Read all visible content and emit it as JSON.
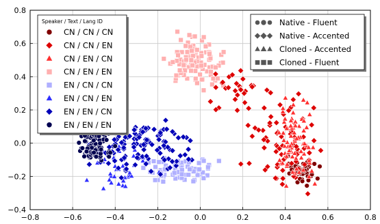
{
  "chart_data": {
    "type": "scatter",
    "xlim": [
      -0.8,
      0.8
    ],
    "ylim": [
      -0.4,
      0.8
    ],
    "x_ticks": [
      "−0.8",
      "−0.6",
      "−0.4",
      "−0.2",
      "0.0",
      "0.2",
      "0.4",
      "0.6",
      "0.8"
    ],
    "y_ticks": [
      "−0.4",
      "−0.2",
      "0.0",
      "0.2",
      "0.4",
      "0.6",
      "0.8"
    ],
    "grid": true,
    "legend_color": {
      "placement": "top-left",
      "title": "Speaker / Text / Lang ID",
      "entries": [
        {
          "label": "CN / CN / CN",
          "color": "#800000",
          "marker": "circle"
        },
        {
          "label": "CN / CN / EN",
          "color": "#dd0000",
          "marker": "diamond"
        },
        {
          "label": "CN / EN / CN",
          "color": "#ff3030",
          "marker": "triangle"
        },
        {
          "label": "CN / EN / EN",
          "color": "#ffb0b0",
          "marker": "square"
        },
        {
          "label": "EN / CN / CN",
          "color": "#b0b0ff",
          "marker": "square"
        },
        {
          "label": "EN / CN / EN",
          "color": "#3030ff",
          "marker": "triangle"
        },
        {
          "label": "EN / EN / CN",
          "color": "#0000b8",
          "marker": "diamond"
        },
        {
          "label": "EN / EN / EN",
          "color": "#000050",
          "marker": "circle"
        }
      ]
    },
    "legend_marker": {
      "placement": "top-right",
      "color": "#555555",
      "entries": [
        {
          "label": "Native - Fluent",
          "marker": "circle"
        },
        {
          "label": "Native - Accented",
          "marker": "diamond"
        },
        {
          "label": "Cloned - Accented",
          "marker": "triangle"
        },
        {
          "label": "Cloned - Fluent",
          "marker": "square"
        }
      ]
    },
    "clusters": [
      {
        "series": "CN / CN / CN",
        "color": "#800000",
        "marker": "circle",
        "cx": 0.47,
        "cy": -0.17,
        "sx": 0.04,
        "sy": 0.04,
        "n": 45
      },
      {
        "series": "CN / CN / EN",
        "color": "#dd0000",
        "marker": "diamond",
        "cx": 0.4,
        "cy": 0.0,
        "sx": 0.08,
        "sy": 0.12,
        "n": 70
      },
      {
        "series": "CN / EN / CN",
        "color": "#ff3030",
        "marker": "triangle",
        "cx": 0.46,
        "cy": -0.05,
        "sx": 0.05,
        "sy": 0.09,
        "n": 60
      },
      {
        "series": "CN / EN / EN",
        "color": "#ffb0b0",
        "marker": "square",
        "cx": -0.02,
        "cy": 0.49,
        "sx": 0.06,
        "sy": 0.07,
        "n": 110
      },
      {
        "series": "EN / CN / CN",
        "color": "#b0b0ff",
        "marker": "square",
        "cx": -0.11,
        "cy": -0.17,
        "sx": 0.08,
        "sy": 0.04,
        "n": 75
      },
      {
        "series": "EN / CN / EN",
        "color": "#3030ff",
        "marker": "triangle",
        "cx": -0.37,
        "cy": -0.14,
        "sx": 0.07,
        "sy": 0.07,
        "n": 40
      },
      {
        "series": "EN / EN / CN",
        "color": "#0000b8",
        "marker": "diamond",
        "cx": -0.27,
        "cy": -0.02,
        "sx": 0.1,
        "sy": 0.08,
        "n": 120
      },
      {
        "series": "EN / EN / EN",
        "color": "#000050",
        "marker": "circle",
        "cx": -0.49,
        "cy": -0.01,
        "sx": 0.04,
        "sy": 0.06,
        "n": 85
      },
      {
        "series": "CN / CN / EN",
        "color": "#dd0000",
        "marker": "diamond",
        "cx": 0.18,
        "cy": 0.3,
        "sx": 0.08,
        "sy": 0.07,
        "n": 30
      },
      {
        "series": "CN / EN / CN",
        "color": "#ff3030",
        "marker": "triangle",
        "cx": 0.44,
        "cy": 0.17,
        "sx": 0.04,
        "sy": 0.06,
        "n": 14
      }
    ]
  }
}
